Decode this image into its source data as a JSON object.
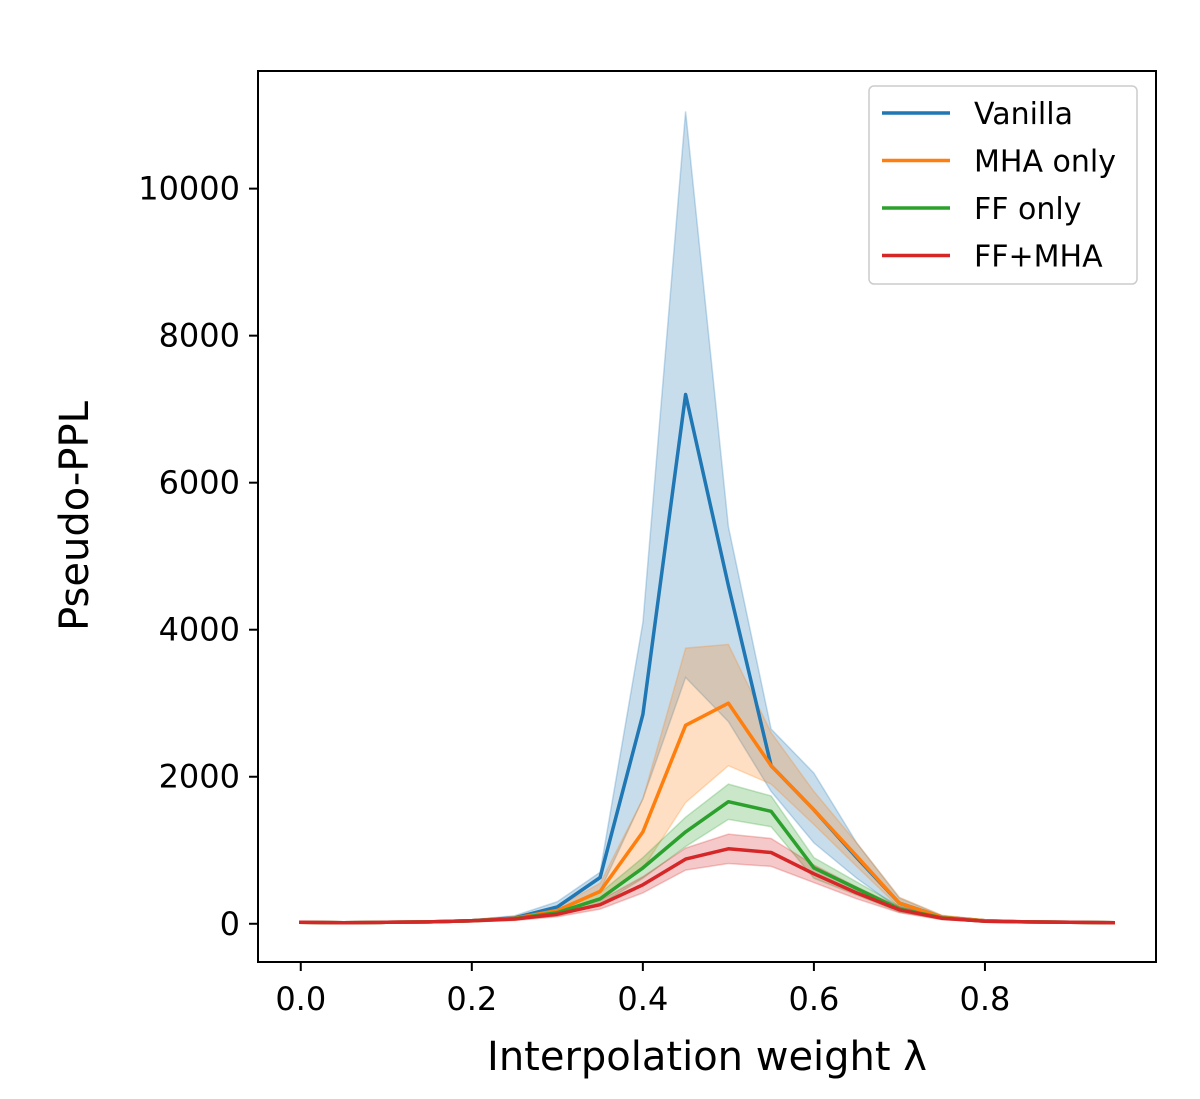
{
  "chart_data": {
    "type": "line",
    "title": "",
    "xlabel": "Interpolation weight λ",
    "ylabel": "Pseudo-PPL",
    "xlim": [
      -0.05,
      1.0
    ],
    "ylim": [
      -520,
      11600
    ],
    "xticks": [
      0.0,
      0.2,
      0.4,
      0.6,
      0.8
    ],
    "xtick_labels": [
      "0.0",
      "0.2",
      "0.4",
      "0.6",
      "0.8"
    ],
    "yticks": [
      0,
      2000,
      4000,
      6000,
      8000,
      10000
    ],
    "ytick_labels": [
      "0",
      "2000",
      "4000",
      "6000",
      "8000",
      "10000"
    ],
    "grid": false,
    "legend_position": "top-right",
    "x": [
      0.0,
      0.05,
      0.1,
      0.15,
      0.2,
      0.25,
      0.3,
      0.35,
      0.4,
      0.45,
      0.5,
      0.55,
      0.6,
      0.65,
      0.7,
      0.75,
      0.8,
      0.85,
      0.9,
      0.95
    ],
    "series": [
      {
        "name": "Vanilla",
        "color": "#1f77b4",
        "values": [
          20,
          15,
          20,
          25,
          40,
          80,
          230,
          630,
          2850,
          7200,
          4600,
          2150,
          1550,
          900,
          280,
          90,
          40,
          25,
          20,
          15
        ],
        "lower": [
          10,
          8,
          12,
          15,
          25,
          55,
          150,
          450,
          1700,
          3350,
          2750,
          1800,
          1100,
          620,
          200,
          60,
          25,
          15,
          12,
          8
        ],
        "upper": [
          30,
          25,
          30,
          35,
          55,
          110,
          300,
          700,
          4100,
          11050,
          5400,
          2650,
          2050,
          1100,
          350,
          110,
          55,
          35,
          30,
          25
        ]
      },
      {
        "name": "MHA only",
        "color": "#ff7f0e",
        "values": [
          20,
          15,
          20,
          25,
          40,
          75,
          180,
          440,
          1250,
          2700,
          3000,
          2150,
          1550,
          920,
          280,
          90,
          40,
          25,
          20,
          15
        ],
        "lower": [
          10,
          8,
          12,
          15,
          25,
          50,
          130,
          330,
          750,
          1650,
          2150,
          1900,
          1350,
          780,
          220,
          65,
          25,
          15,
          12,
          8
        ],
        "upper": [
          30,
          25,
          30,
          35,
          55,
          100,
          230,
          550,
          1700,
          3750,
          3800,
          2600,
          1800,
          1100,
          360,
          115,
          55,
          35,
          30,
          25
        ]
      },
      {
        "name": "FF only",
        "color": "#2ca02c",
        "values": [
          20,
          15,
          20,
          25,
          40,
          70,
          150,
          340,
          760,
          1250,
          1660,
          1530,
          760,
          480,
          200,
          80,
          35,
          25,
          20,
          15
        ],
        "lower": [
          10,
          8,
          12,
          15,
          25,
          50,
          110,
          260,
          620,
          1050,
          1420,
          1320,
          620,
          390,
          160,
          60,
          25,
          15,
          12,
          8
        ],
        "upper": [
          30,
          25,
          30,
          35,
          55,
          90,
          190,
          420,
          900,
          1450,
          1900,
          1740,
          900,
          570,
          240,
          100,
          45,
          35,
          30,
          25
        ]
      },
      {
        "name": "FF+MHA",
        "color": "#d62728",
        "values": [
          20,
          15,
          20,
          25,
          40,
          65,
          130,
          260,
          530,
          880,
          1020,
          970,
          680,
          420,
          190,
          75,
          35,
          25,
          20,
          15
        ],
        "lower": [
          10,
          8,
          12,
          15,
          25,
          45,
          95,
          200,
          420,
          730,
          820,
          780,
          560,
          340,
          150,
          55,
          25,
          15,
          12,
          8
        ],
        "upper": [
          30,
          25,
          30,
          35,
          55,
          85,
          165,
          320,
          640,
          1030,
          1220,
          1160,
          800,
          500,
          230,
          95,
          45,
          35,
          30,
          25
        ]
      }
    ]
  }
}
